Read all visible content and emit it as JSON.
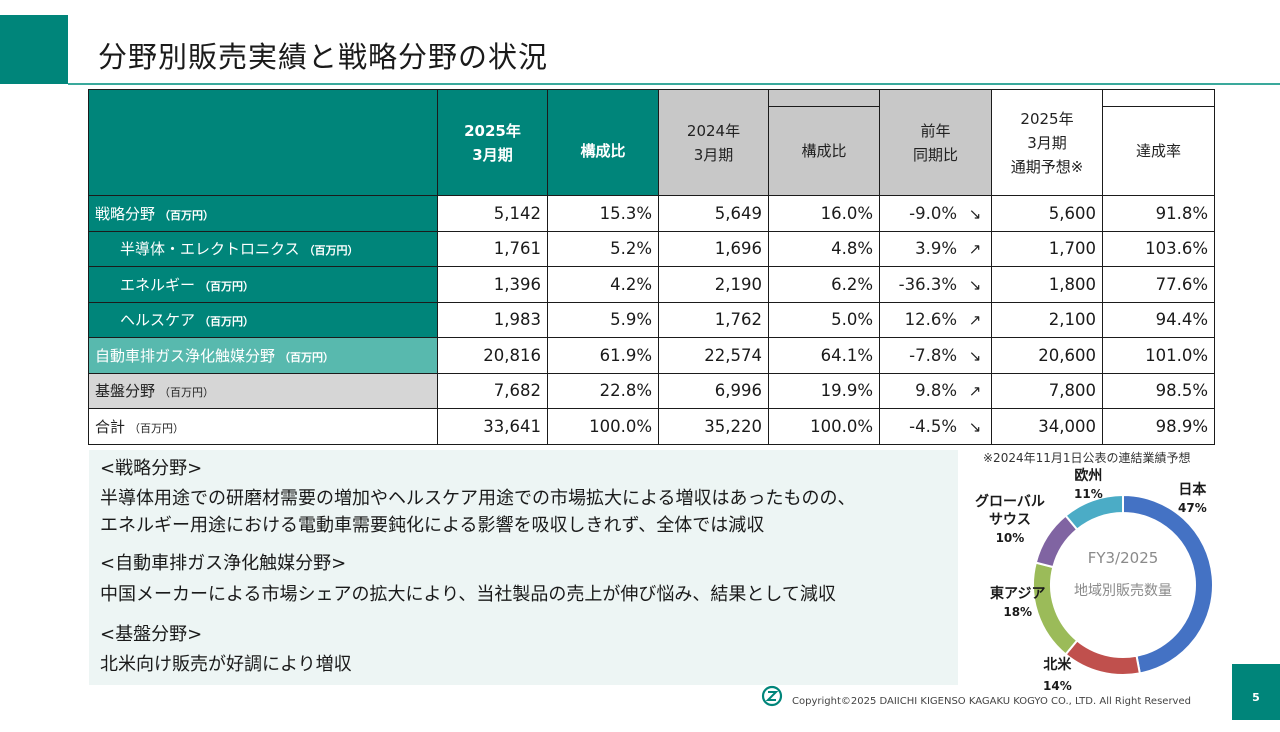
{
  "title": "分野別販売実績と戦略分野の状況",
  "table": {
    "headers": {
      "fy2025": "2025年\n3月期",
      "ratio2025": "構成比",
      "fy2024": "2024年\n3月期",
      "ratio2024": "構成比",
      "yoy": "前年\n同期比",
      "forecast": "2025年\n3月期\n通期予想※",
      "achievement": "達成率"
    },
    "rows": [
      {
        "label": "戦略分野",
        "unit": "（百万円）",
        "v2025": "5,142",
        "r2025": "15.3%",
        "v2024": "5,649",
        "r2024": "16.0%",
        "yoy": "-9.0%",
        "trend": "down",
        "forecast": "5,600",
        "ach": "91.8%"
      },
      {
        "label": "半導体・エレクトロニクス",
        "unit": "（百万円）",
        "v2025": "1,761",
        "r2025": "5.2%",
        "v2024": "1,696",
        "r2024": "4.8%",
        "yoy": "3.9%",
        "trend": "up",
        "forecast": "1,700",
        "ach": "103.6%"
      },
      {
        "label": "エネルギー",
        "unit": "（百万円）",
        "v2025": "1,396",
        "r2025": "4.2%",
        "v2024": "2,190",
        "r2024": "6.2%",
        "yoy": "-36.3%",
        "trend": "down",
        "forecast": "1,800",
        "ach": "77.6%"
      },
      {
        "label": "ヘルスケア",
        "unit": "（百万円）",
        "v2025": "1,983",
        "r2025": "5.9%",
        "v2024": "1,762",
        "r2024": "5.0%",
        "yoy": "12.6%",
        "trend": "up",
        "forecast": "2,100",
        "ach": "94.4%"
      },
      {
        "label": "自動車排ガス浄化触媒分野",
        "unit": "（百万円）",
        "v2025": "20,816",
        "r2025": "61.9%",
        "v2024": "22,574",
        "r2024": "64.1%",
        "yoy": "-7.8%",
        "trend": "down",
        "forecast": "20,600",
        "ach": "101.0%"
      },
      {
        "label": "基盤分野",
        "unit": "（百万円）",
        "v2025": "7,682",
        "r2025": "22.8%",
        "v2024": "6,996",
        "r2024": "19.9%",
        "yoy": "9.8%",
        "trend": "up",
        "forecast": "7,800",
        "ach": "98.5%"
      },
      {
        "label": "合計",
        "unit": "（百万円）",
        "v2025": "33,641",
        "r2025": "100.0%",
        "v2024": "35,220",
        "r2024": "100.0%",
        "yoy": "-4.5%",
        "trend": "down",
        "forecast": "34,000",
        "ach": "98.9%"
      }
    ],
    "arrows": {
      "up": "↗",
      "down": "↘"
    }
  },
  "comments": [
    "<戦略分野>",
    "半導体用途での研磨材需要の増加やヘルスケア用途での市場拡大による増収はあったものの、",
    "エネルギー用途における電動車需要鈍化による影響を吸収しきれず、全体では減収",
    "<自動車排ガス浄化触媒分野>",
    "中国メーカーによる市場シェアの拡大により、当社製品の売上が伸び悩み、結果として減収",
    "<基盤分野>",
    "北米向け販売が好調により増収"
  ],
  "donut": {
    "note": "※2024年11月1日公表の連結業績予想",
    "center_line1": "FY3/2025",
    "center_line2": "地域別販売数量",
    "segments": [
      {
        "label": "日本",
        "pct": "47%",
        "value": 47,
        "color": "#4472c4"
      },
      {
        "label": "北米",
        "pct": "14%",
        "value": 14,
        "color": "#c0504d"
      },
      {
        "label": "東アジア",
        "pct": "18%",
        "value": 18,
        "color": "#9bbb59"
      },
      {
        "label": "グローバルサウス",
        "pct": "10%",
        "value": 10,
        "color": "#8064a2"
      },
      {
        "label": "欧州",
        "pct": "11%",
        "value": 11,
        "color": "#4bacc6"
      }
    ],
    "gs_line1": "グローバル",
    "gs_line2": "サウス"
  },
  "footer": {
    "copyright": "Copyright©2025 DAIICHI KIGENSO KAGAKU KOGYO CO., LTD. All Right Reserved",
    "page": "5"
  },
  "colors": {
    "teal": "#00857a",
    "light_teal": "#58b9ae",
    "grey": "#c8c8c8"
  }
}
